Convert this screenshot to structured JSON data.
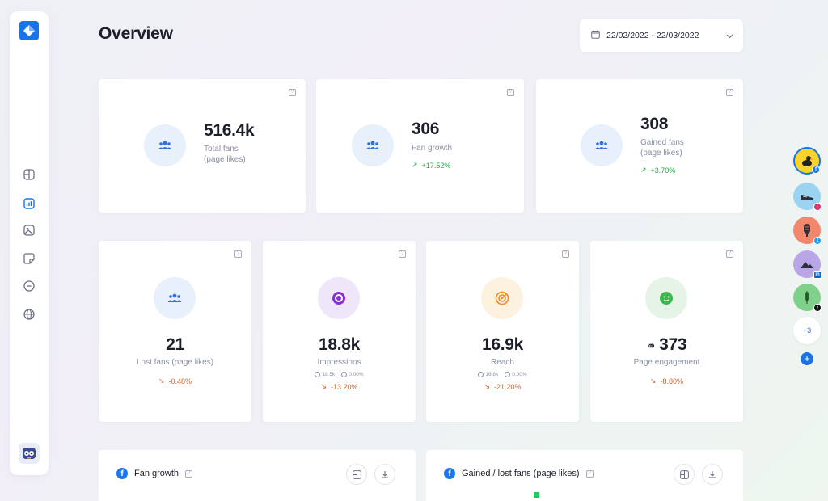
{
  "page": {
    "title": "Overview"
  },
  "date_range": {
    "value": "22/02/2022 - 22/03/2022"
  },
  "colors": {
    "accent": "#1a73e8",
    "up": "#29a745",
    "down": "#d1632e"
  },
  "top_cards": [
    {
      "value": "516.4k",
      "label_line1": "Total fans",
      "label_line2": "(page likes)",
      "trend": ""
    },
    {
      "value": "306",
      "label_line1": "Fan growth",
      "label_line2": "",
      "trend": "+17.52%"
    },
    {
      "value": "308",
      "label_line1": "Gained fans",
      "label_line2": "(page likes)",
      "trend": "+3.70%"
    }
  ],
  "bottom_cards": [
    {
      "value": "21",
      "label": "Lost fans (page likes)",
      "trend": "-0.48%"
    },
    {
      "value": "18.8k",
      "label": "Impressions",
      "sub_a": "18.5k",
      "sub_b": "0.00%",
      "trend": "-13.20%"
    },
    {
      "value": "16.9k",
      "label": "Reach",
      "sub_a": "16.8k",
      "sub_b": "0.00%",
      "trend": "-21.20%"
    },
    {
      "value": "373",
      "label": "Page engagement",
      "trend": "-8.80%"
    }
  ],
  "charts": [
    {
      "title": "Fan growth"
    },
    {
      "title": "Gained / lost fans (page likes)"
    }
  ],
  "accounts": {
    "more_label": "+3"
  },
  "icons": [
    "logo-icon",
    "dashboard-icon",
    "analytics-icon",
    "media-icon",
    "notes-icon",
    "messages-icon",
    "globe-icon",
    "calendar-icon",
    "chevron-down-icon",
    "users-icon",
    "target-icon",
    "smiley-icon",
    "info-icon",
    "download-icon",
    "layout-icon"
  ]
}
